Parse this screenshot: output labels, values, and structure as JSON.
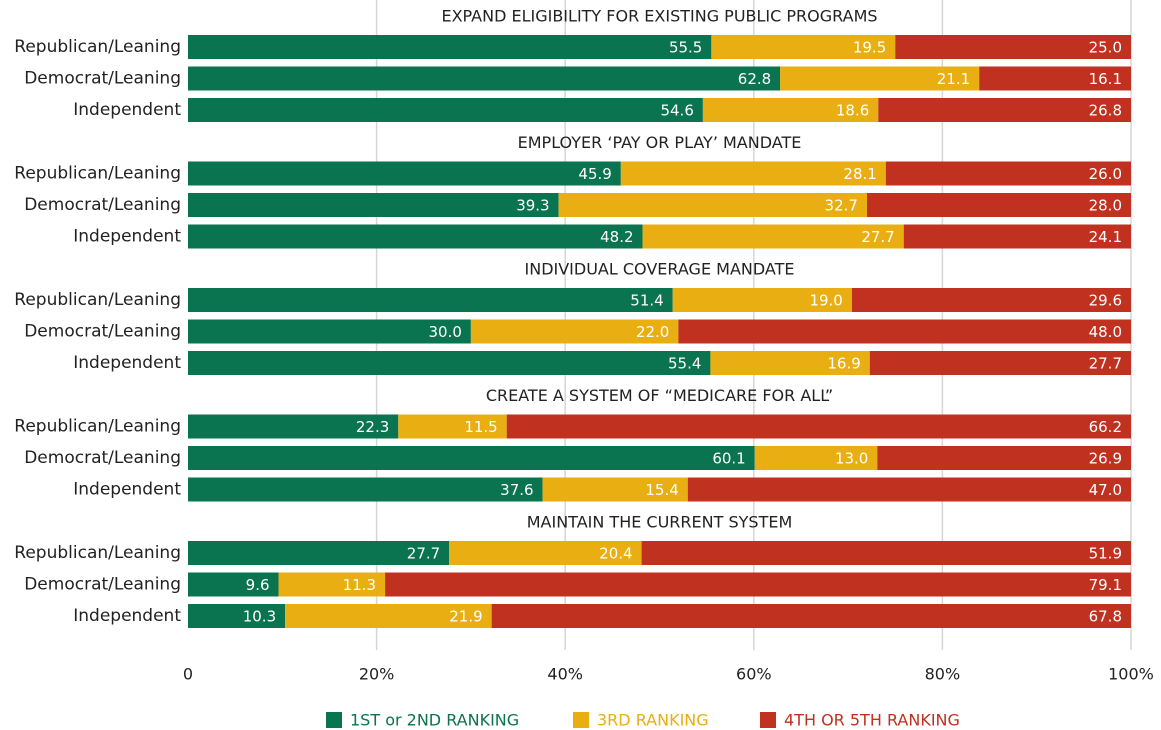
{
  "chart_data": {
    "type": "bar",
    "orientation": "horizontal",
    "stacked": true,
    "xlim": [
      0,
      100
    ],
    "xticks": [
      0,
      {
        "value": 20,
        "label": "20%"
      },
      {
        "value": 40,
        "label": "40%"
      },
      {
        "value": 60,
        "label": "60%"
      },
      {
        "value": 80,
        "label": "80%"
      },
      {
        "value": 100,
        "label": "100%"
      }
    ],
    "grid": true,
    "legend": "bottom",
    "series": [
      {
        "name": "1ST or 2ND RANKING",
        "color": "#0a7350"
      },
      {
        "name": "3RD RANKING",
        "color": "#e8ae12"
      },
      {
        "name": "4TH OR 5TH RANKING",
        "color": "#c0311f"
      }
    ],
    "panels": [
      {
        "title": "EXPAND ELIGIBILITY FOR EXISTING PUBLIC PROGRAMS",
        "categories": [
          "Republican/Leaning",
          "Democrat/Leaning",
          "Independent"
        ],
        "series": [
          {
            "values": [
              55.5,
              62.8,
              54.6
            ],
            "value_labels": [
              "55.5",
              "62.8",
              "54.6"
            ]
          },
          {
            "values": [
              19.5,
              21.1,
              18.6
            ],
            "value_labels": [
              "19.5",
              "21.1",
              "18.6"
            ]
          },
          {
            "values": [
              25.0,
              16.1,
              26.8
            ],
            "value_labels": [
              "25.0",
              "16.1",
              "26.8"
            ]
          }
        ]
      },
      {
        "title": "EMPLOYER ‘PAY OR PLAY’ MANDATE",
        "categories": [
          "Republican/Leaning",
          "Democrat/Leaning",
          "Independent"
        ],
        "series": [
          {
            "values": [
              45.9,
              39.3,
              48.2
            ],
            "value_labels": [
              "45.9",
              "39.3",
              "48.2"
            ]
          },
          {
            "values": [
              28.1,
              32.7,
              27.7
            ],
            "value_labels": [
              "28.1",
              "32.7",
              "27.7"
            ]
          },
          {
            "values": [
              26.0,
              28.0,
              24.1
            ],
            "value_labels": [
              "26.0",
              "28.0",
              "24.1"
            ]
          }
        ]
      },
      {
        "title": "INDIVIDUAL COVERAGE MANDATE",
        "categories": [
          "Republican/Leaning",
          "Democrat/Leaning",
          "Independent"
        ],
        "series": [
          {
            "values": [
              51.4,
              30.0,
              55.4
            ],
            "value_labels": [
              "51.4",
              "30.0",
              "55.4"
            ]
          },
          {
            "values": [
              19.0,
              22.0,
              16.9
            ],
            "value_labels": [
              "19.0",
              "22.0",
              "16.9"
            ]
          },
          {
            "values": [
              29.6,
              48.0,
              27.7
            ],
            "value_labels": [
              "29.6",
              "48.0",
              "27.7"
            ]
          }
        ]
      },
      {
        "title": "CREATE A SYSTEM OF “MEDICARE FOR ALL”",
        "categories": [
          "Republican/Leaning",
          "Democrat/Leaning",
          "Independent"
        ],
        "series": [
          {
            "values": [
              22.3,
              60.1,
              37.6
            ],
            "value_labels": [
              "22.3",
              "60.1",
              "37.6"
            ]
          },
          {
            "values": [
              11.5,
              13.0,
              15.4
            ],
            "value_labels": [
              "11.5",
              "13.0",
              "15.4"
            ]
          },
          {
            "values": [
              66.2,
              26.9,
              47.0
            ],
            "value_labels": [
              "66.2",
              "26.9",
              "47.0"
            ]
          }
        ]
      },
      {
        "title": "MAINTAIN THE CURRENT SYSTEM",
        "categories": [
          "Republican/Leaning",
          "Democrat/Leaning",
          "Independent"
        ],
        "series": [
          {
            "values": [
              27.7,
              9.6,
              10.3
            ],
            "value_labels": [
              "27.7",
              "9.6",
              "10.3"
            ]
          },
          {
            "values": [
              20.4,
              11.3,
              21.9
            ],
            "value_labels": [
              "20.4",
              "11.3",
              "21.9"
            ]
          },
          {
            "values": [
              51.9,
              79.1,
              67.8
            ],
            "value_labels": [
              "51.9",
              "79.1",
              "67.8"
            ]
          }
        ]
      }
    ]
  }
}
